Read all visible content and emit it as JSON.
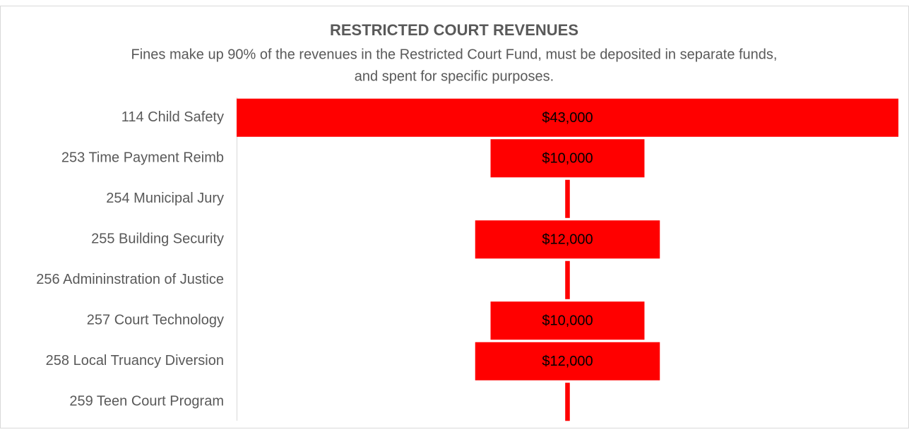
{
  "chart_data": {
    "type": "funnel",
    "title": "RESTRICTED COURT REVENUES",
    "subtitle": [
      "Fines make up 90% of the revenues in the Restricted Court Fund, must be deposited in separate funds,",
      "and spent for specific purposes."
    ],
    "categories": [
      "114 Child Safety",
      "253 Time Payment Reimb",
      "254 Municipal Jury",
      "255 Building Security",
      "256 Admininstration of Justice",
      "257 Court Technology",
      "258 Local Truancy Diversion",
      "259 Teen Court Program"
    ],
    "values": [
      43000,
      10000,
      300,
      12000,
      300,
      10000,
      12000,
      300
    ],
    "value_labels": [
      "$43,000",
      "$10,000",
      null,
      "$12,000",
      null,
      "$10,000",
      "$12,000",
      null
    ],
    "color": "#ff0000"
  }
}
